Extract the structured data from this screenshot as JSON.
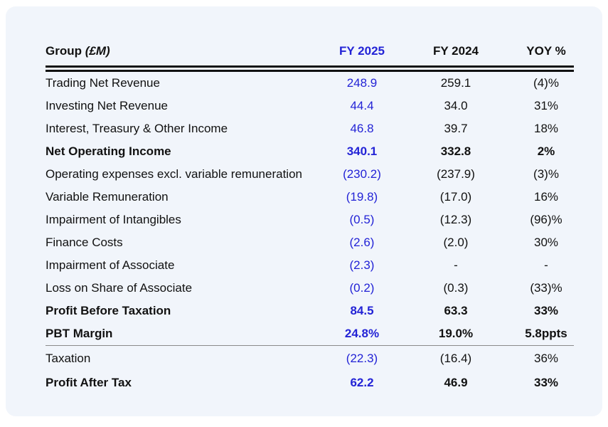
{
  "header": {
    "group_label": "Group",
    "group_unit": "(£M)",
    "fy2025": "FY 2025",
    "fy2024": "FY 2024",
    "yoy": "YOY %"
  },
  "rows": [
    {
      "label": "Trading Net Revenue",
      "fy2025": "248.9",
      "fy2024": "259.1",
      "yoy": "(4)%"
    },
    {
      "label": "Investing Net Revenue",
      "fy2025": "44.4",
      "fy2024": "34.0",
      "yoy": "31%"
    },
    {
      "label": "Interest, Treasury & Other Income",
      "fy2025": "46.8",
      "fy2024": "39.7",
      "yoy": "18%"
    },
    {
      "label": "Net Operating Income",
      "fy2025": "340.1",
      "fy2024": "332.8",
      "yoy": "2%"
    },
    {
      "label": "Operating expenses excl. variable remuneration",
      "fy2025": "(230.2)",
      "fy2024": "(237.9)",
      "yoy": "(3)%"
    },
    {
      "label": "Variable Remuneration",
      "fy2025": "(19.8)",
      "fy2024": "(17.0)",
      "yoy": "16%"
    },
    {
      "label": "Impairment of Intangibles",
      "fy2025": "(0.5)",
      "fy2024": "(12.3)",
      "yoy": "(96)%"
    },
    {
      "label": "Finance Costs",
      "fy2025": "(2.6)",
      "fy2024": "(2.0)",
      "yoy": "30%"
    },
    {
      "label": "Impairment of Associate",
      "fy2025": "(2.3)",
      "fy2024": "-",
      "yoy": "-"
    },
    {
      "label": "Loss on Share of Associate",
      "fy2025": "(0.2)",
      "fy2024": "(0.3)",
      "yoy": "(33)%"
    },
    {
      "label": "Profit Before Taxation",
      "fy2025": "84.5",
      "fy2024": "63.3",
      "yoy": "33%"
    },
    {
      "label": "PBT Margin",
      "fy2025": "24.8%",
      "fy2024": "19.0%",
      "yoy": "5.8ppts"
    },
    {
      "label": "Taxation",
      "fy2025": "(22.3)",
      "fy2024": "(16.4)",
      "yoy": "36%"
    },
    {
      "label": "Profit After Tax",
      "fy2025": "62.2",
      "fy2024": "46.9",
      "yoy": "33%"
    }
  ],
  "colors": {
    "accent_blue": "#2323d6",
    "text": "#111111",
    "card_bg": "#f1f5fb",
    "rule": "#111111"
  }
}
